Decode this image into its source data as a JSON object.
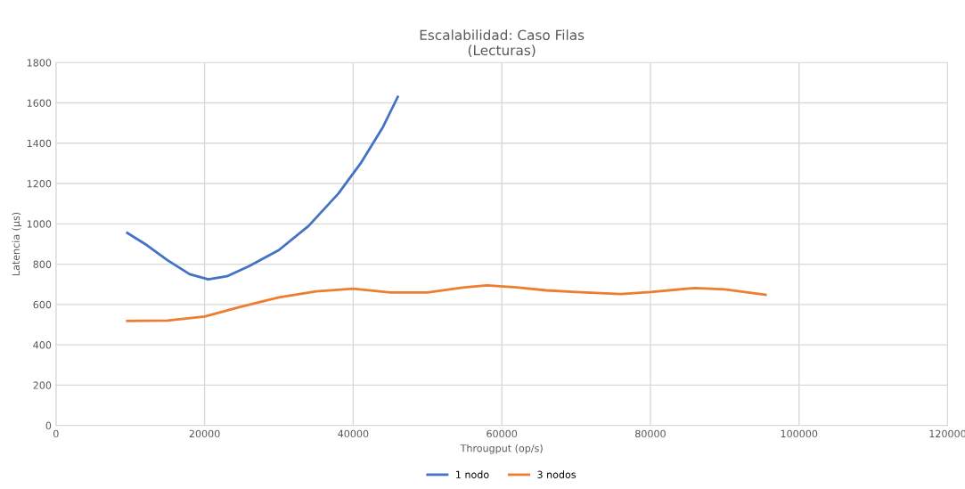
{
  "chart_data": {
    "type": "line",
    "title": "Escalabilidad: Caso Filas\n(Lecturas)",
    "xlabel": "Througput (op/s)",
    "ylabel": "Latencia (µs)",
    "xlim": [
      0,
      120000
    ],
    "xticks": [
      0,
      20000,
      40000,
      60000,
      80000,
      100000,
      120000
    ],
    "ylim": [
      0,
      1800
    ],
    "yticks": [
      0,
      200,
      400,
      600,
      800,
      1000,
      1200,
      1400,
      1600,
      1800
    ],
    "grid": true,
    "legend": "bottom",
    "marker": "none",
    "line_style": "solid",
    "series": [
      {
        "name": "1 nodo",
        "color": "#4472c4",
        "x": [
          9600,
          12000,
          15000,
          18000,
          20500,
          23000,
          26000,
          30000,
          34000,
          38000,
          41000,
          44000,
          46000
        ],
        "values": [
          955,
          900,
          820,
          750,
          725,
          740,
          790,
          870,
          990,
          1150,
          1300,
          1480,
          1630
        ]
      },
      {
        "name": "3 nodos",
        "color": "#ed7d31",
        "x": [
          9600,
          15000,
          20000,
          25000,
          30000,
          35000,
          40000,
          45000,
          50000,
          55000,
          58000,
          62000,
          66000,
          70000,
          76000,
          80000,
          86000,
          90000,
          95500
        ],
        "values": [
          518,
          520,
          540,
          590,
          635,
          665,
          678,
          660,
          660,
          685,
          695,
          685,
          670,
          662,
          652,
          662,
          682,
          675,
          648
        ]
      }
    ]
  }
}
